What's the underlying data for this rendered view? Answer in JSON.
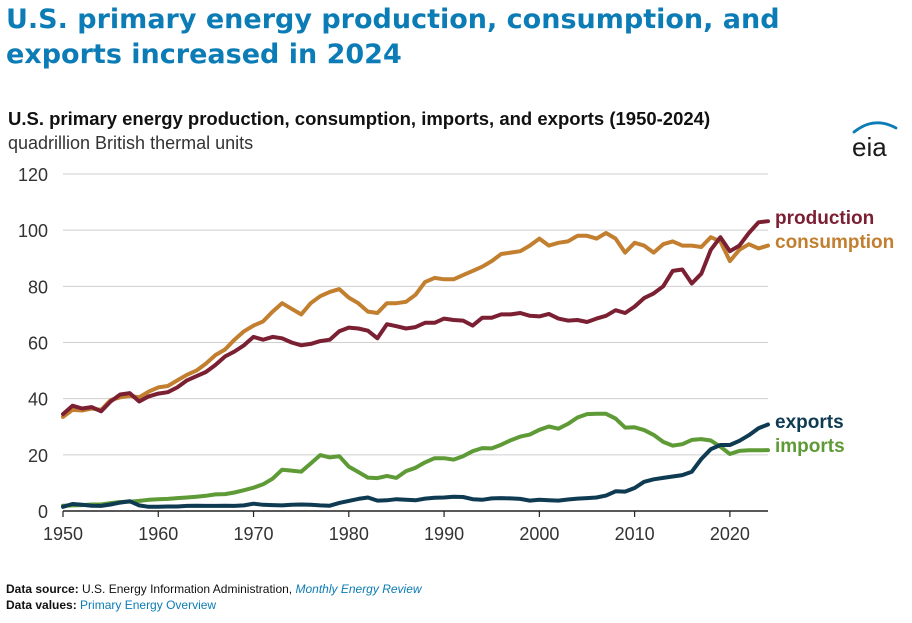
{
  "headline": "U.S. primary energy production, consumption, and exports increased in 2024",
  "chart_title": "U.S. primary energy production, consumption, imports, and exports (1950-2024)",
  "units": "quadrillion British thermal units",
  "logo_text": "eia",
  "footer": {
    "source_label": "Data source:",
    "source_text": "U.S. Energy Information Administration,",
    "source_link": "Monthly Energy Review",
    "values_label": "Data values:",
    "values_link": "Primary Energy Overview"
  },
  "colors": {
    "production": "#7b1f32",
    "consumption": "#c17f2f",
    "exports": "#0e3a52",
    "imports": "#5e9a36",
    "headline": "#0b7cb5"
  },
  "chart_data": {
    "type": "line",
    "title": "U.S. primary energy production, consumption, imports, and exports (1950-2024)",
    "ylabel": "quadrillion British thermal units",
    "xlim": [
      1950,
      2024
    ],
    "ylim": [
      0,
      120
    ],
    "x_ticks": [
      1950,
      1960,
      1970,
      1980,
      1990,
      2000,
      2010,
      2020
    ],
    "y_ticks": [
      0,
      20,
      40,
      60,
      80,
      100,
      120
    ],
    "grid": true,
    "legend": "labels at line ends (right)",
    "x": [
      1950,
      1951,
      1952,
      1953,
      1954,
      1955,
      1956,
      1957,
      1958,
      1959,
      1960,
      1961,
      1962,
      1963,
      1964,
      1965,
      1966,
      1967,
      1968,
      1969,
      1970,
      1971,
      1972,
      1973,
      1974,
      1975,
      1976,
      1977,
      1978,
      1979,
      1980,
      1981,
      1982,
      1983,
      1984,
      1985,
      1986,
      1987,
      1988,
      1989,
      1990,
      1991,
      1992,
      1993,
      1994,
      1995,
      1996,
      1997,
      1998,
      1999,
      2000,
      2001,
      2002,
      2003,
      2004,
      2005,
      2006,
      2007,
      2008,
      2009,
      2010,
      2011,
      2012,
      2013,
      2014,
      2015,
      2016,
      2017,
      2018,
      2019,
      2020,
      2021,
      2022,
      2023,
      2024
    ],
    "series": [
      {
        "name": "production",
        "values": [
          34.5,
          37.5,
          36.5,
          37.0,
          35.5,
          39.0,
          41.5,
          42.0,
          39.0,
          40.8,
          41.8,
          42.3,
          44.0,
          46.5,
          48.0,
          49.5,
          52.0,
          55.0,
          56.8,
          59.0,
          62.0,
          61.0,
          62.0,
          61.5,
          60.0,
          59.0,
          59.5,
          60.5,
          61.0,
          64.0,
          65.3,
          65.0,
          64.2,
          61.5,
          66.5,
          65.8,
          65.0,
          65.5,
          67.0,
          67.0,
          68.5,
          68.0,
          67.8,
          66.0,
          68.8,
          68.8,
          70.0,
          70.0,
          70.5,
          69.5,
          69.3,
          70.2,
          68.5,
          67.8,
          68.0,
          67.3,
          68.5,
          69.5,
          71.5,
          70.5,
          72.8,
          75.8,
          77.5,
          80.0,
          85.5,
          86.0,
          81.0,
          84.5,
          93.0,
          97.5,
          92.5,
          94.5,
          99.0,
          102.8,
          103.2
        ]
      },
      {
        "name": "consumption",
        "values": [
          33.5,
          36.0,
          35.8,
          36.5,
          36.0,
          39.5,
          40.5,
          41.0,
          40.5,
          42.5,
          44.0,
          44.5,
          46.5,
          48.5,
          50.0,
          52.5,
          55.5,
          57.5,
          61.0,
          64.0,
          66.0,
          67.5,
          71.0,
          74.0,
          72.0,
          70.0,
          74.0,
          76.5,
          78.0,
          79.0,
          76.0,
          74.0,
          71.0,
          70.5,
          74.0,
          74.0,
          74.5,
          77.0,
          81.5,
          83.0,
          82.5,
          82.5,
          84.0,
          85.5,
          87.0,
          89.0,
          91.5,
          92.0,
          92.5,
          94.5,
          97.0,
          94.5,
          95.5,
          96.0,
          98.0,
          98.0,
          97.0,
          99.0,
          97.0,
          92.0,
          95.5,
          94.5,
          92.0,
          95.0,
          96.0,
          94.5,
          94.5,
          94.0,
          97.5,
          96.0,
          89.0,
          93.0,
          95.0,
          93.5,
          94.5
        ]
      },
      {
        "name": "exports",
        "values": [
          1.5,
          2.5,
          2.2,
          1.9,
          1.8,
          2.3,
          3.0,
          3.5,
          2.0,
          1.5,
          1.5,
          1.6,
          1.6,
          1.8,
          1.9,
          1.8,
          1.8,
          1.9,
          1.8,
          2.0,
          2.6,
          2.2,
          2.1,
          2.0,
          2.2,
          2.3,
          2.2,
          2.0,
          1.9,
          2.9,
          3.6,
          4.3,
          4.8,
          3.7,
          3.8,
          4.2,
          4.0,
          3.8,
          4.4,
          4.7,
          4.8,
          5.1,
          5.0,
          4.2,
          4.0,
          4.5,
          4.6,
          4.5,
          4.3,
          3.7,
          4.0,
          3.8,
          3.7,
          4.1,
          4.4,
          4.6,
          4.8,
          5.5,
          7.0,
          6.9,
          8.2,
          10.4,
          11.3,
          11.8,
          12.3,
          12.8,
          14.0,
          18.5,
          22.0,
          23.5,
          23.5,
          25.0,
          27.0,
          29.5,
          30.8
        ]
      },
      {
        "name": "imports",
        "values": [
          1.9,
          2.0,
          2.1,
          2.3,
          2.3,
          2.8,
          3.2,
          3.3,
          3.6,
          4.0,
          4.2,
          4.3,
          4.6,
          4.8,
          5.1,
          5.4,
          5.9,
          6.0,
          6.6,
          7.4,
          8.3,
          9.5,
          11.5,
          14.7,
          14.4,
          14.0,
          16.9,
          19.9,
          19.1,
          19.5,
          15.8,
          13.9,
          11.9,
          11.7,
          12.5,
          11.8,
          14.2,
          15.4,
          17.3,
          18.8,
          18.8,
          18.3,
          19.5,
          21.3,
          22.4,
          22.3,
          23.6,
          25.2,
          26.5,
          27.2,
          28.9,
          30.1,
          29.3,
          31.0,
          33.3,
          34.5,
          34.6,
          34.6,
          32.9,
          29.7,
          29.8,
          28.8,
          27.1,
          24.6,
          23.3,
          23.8,
          25.3,
          25.6,
          25.1,
          22.9,
          20.3,
          21.4,
          21.6,
          21.6,
          21.7
        ]
      }
    ]
  }
}
